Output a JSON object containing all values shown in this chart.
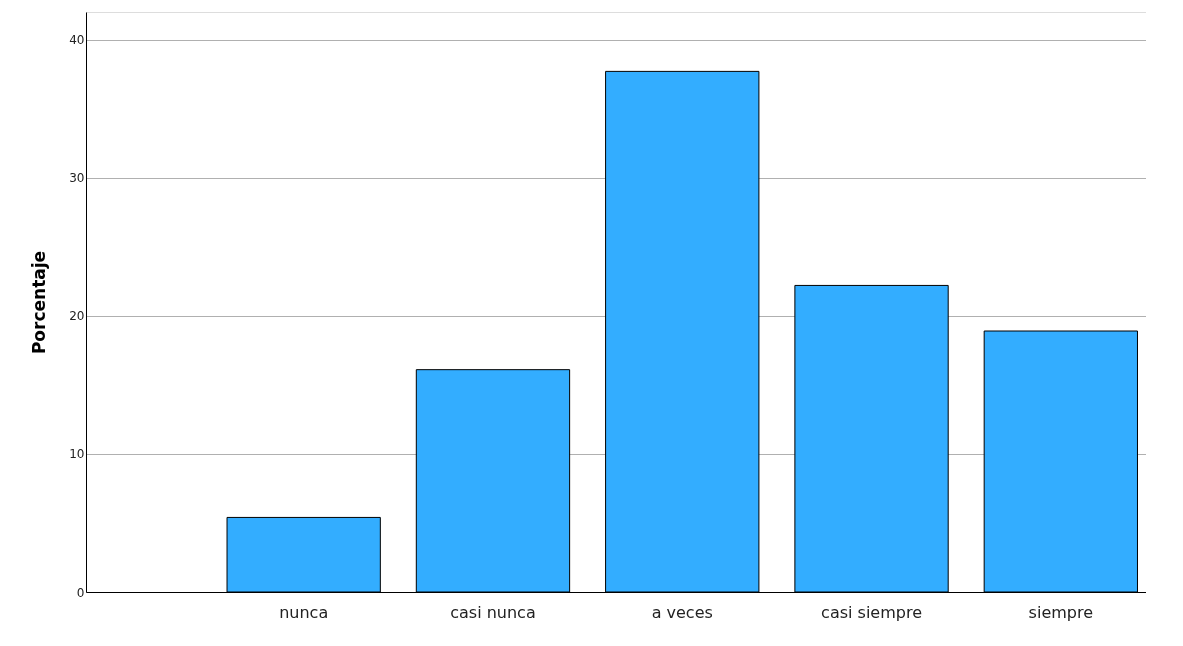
{
  "chart_data": {
    "type": "bar",
    "ylabel": "Porcentaje",
    "categories": [
      "nunca",
      "casi nunca",
      "a veces",
      "casi siempre",
      "siempre"
    ],
    "values": [
      5.4,
      16.1,
      37.7,
      22.2,
      18.9
    ],
    "color": "#33adff",
    "ylim": [
      0,
      42
    ],
    "yticks": [
      0,
      10,
      20,
      30,
      40
    ],
    "grid": "y"
  }
}
